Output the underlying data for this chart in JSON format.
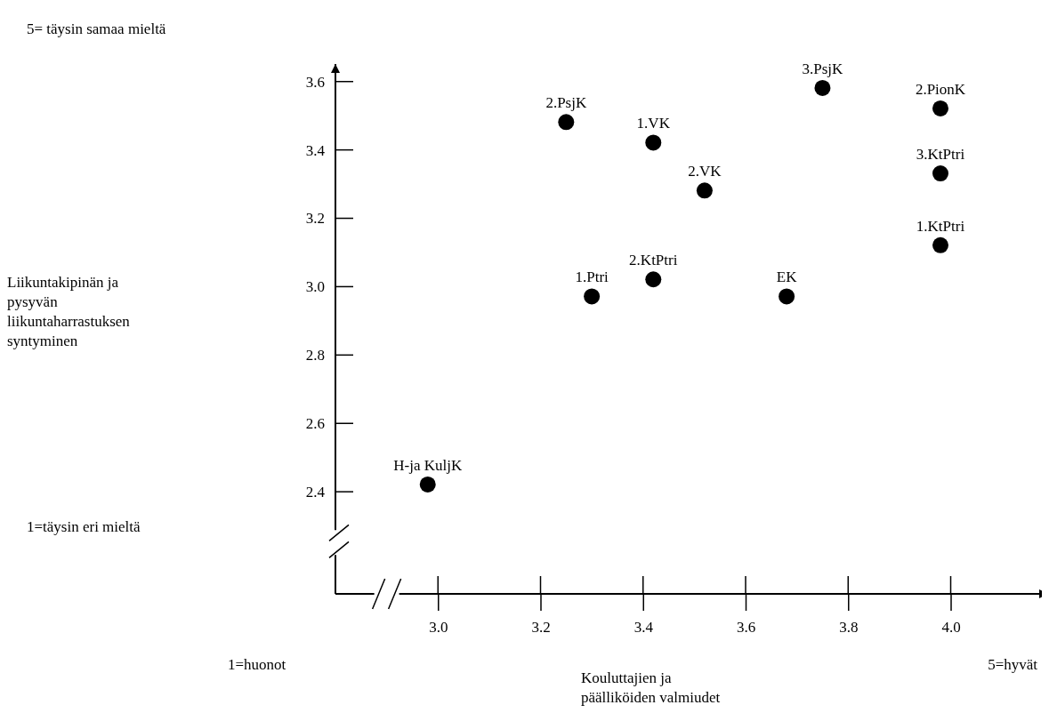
{
  "chart_data": {
    "type": "scatter",
    "xlabel": "Kouluttajien ja päälliköiden valmiudet",
    "x": [
      3.25,
      3.42,
      3.52,
      3.42,
      3.3,
      3.75,
      3.98,
      3.98,
      3.98,
      3.68,
      2.98
    ],
    "values": [
      3.48,
      3.42,
      3.28,
      3.02,
      2.97,
      3.58,
      3.52,
      3.33,
      3.12,
      2.97,
      2.42
    ],
    "color": "#000000",
    "marker": "circle",
    "xlim": [
      2.8,
      4.19
    ],
    "ylim": [
      2.1,
      3.65
    ],
    "xticks": [
      {
        "value": 3,
        "label": "3.0"
      },
      3.2,
      3.4,
      3.6,
      3.8,
      {
        "value": 4,
        "label": "4.0"
      }
    ],
    "yticks": [
      2.4,
      2.6,
      2.8,
      {
        "value": 3,
        "label": "3.0"
      },
      3.2,
      3.4,
      3.6
    ],
    "grid": false,
    "annotations": [
      "5= täysin samaa mieltä",
      "1=täysin eri mieltä",
      "1=huonot",
      "5=hyvät",
      "Liikuntakipinän ja pysyvän liikuntaharrastuksen syntyminen",
      {
        "text": "2.PsjK",
        "x": 3.25,
        "y": 3.48
      },
      {
        "text": "1.VK",
        "x": 3.42,
        "y": 3.42
      },
      {
        "text": "2.VK",
        "x": 3.52,
        "y": 3.28
      },
      {
        "text": "2.KtPtri",
        "x": 3.42,
        "y": 3.02
      },
      {
        "text": "1.Ptri",
        "x": 3.3,
        "y": 2.97
      },
      {
        "text": "3.PsjK",
        "x": 3.75,
        "y": 3.58
      },
      {
        "text": "2.PionK",
        "x": 3.98,
        "y": 3.52
      },
      {
        "text": "3.KtPtri",
        "x": 3.98,
        "y": 3.33
      },
      {
        "text": "1.KtPtri",
        "x": 3.98,
        "y": 3.12
      },
      {
        "text": "EK",
        "x": 3.68,
        "y": 2.97
      },
      {
        "text": "H-ja KuljK",
        "x": 2.98,
        "y": 2.42
      }
    ]
  }
}
